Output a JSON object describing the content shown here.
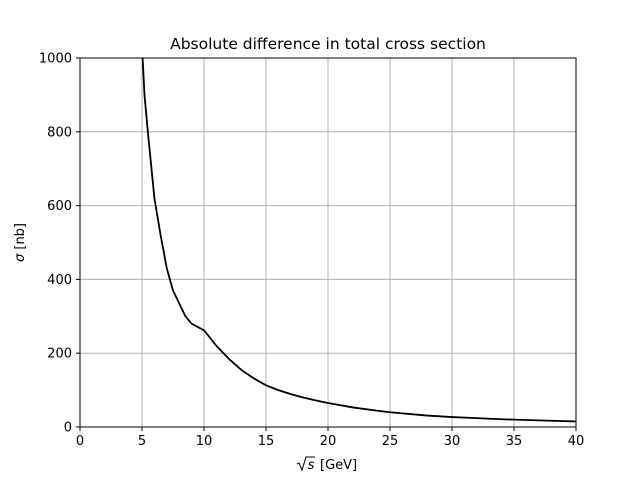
{
  "chart_data": {
    "type": "line",
    "title": "Absolute difference in total cross section",
    "xlabel_base": "[GeV]",
    "ylabel_symbol": "σ",
    "ylabel_unit": "[nb]",
    "xlim": [
      0,
      40
    ],
    "ylim": [
      0,
      1000
    ],
    "x_ticks": [
      0,
      5,
      10,
      15,
      20,
      25,
      30,
      35,
      40
    ],
    "y_ticks": [
      0,
      200,
      400,
      600,
      800,
      1000
    ],
    "grid": true,
    "series": [
      {
        "color": "#000000",
        "points": [
          [
            5.05,
            1000
          ],
          [
            5.2,
            900
          ],
          [
            5.5,
            790
          ],
          [
            6,
            620
          ],
          [
            6.5,
            520
          ],
          [
            7,
            430
          ],
          [
            7.5,
            370
          ],
          [
            8,
            335
          ],
          [
            8.5,
            300
          ],
          [
            9,
            280
          ],
          [
            10,
            262
          ],
          [
            11,
            220
          ],
          [
            12,
            185
          ],
          [
            13,
            155
          ],
          [
            14,
            132
          ],
          [
            15,
            113
          ],
          [
            16,
            100
          ],
          [
            17,
            89
          ],
          [
            18,
            80
          ],
          [
            19,
            72
          ],
          [
            20,
            65
          ],
          [
            22,
            53
          ],
          [
            24,
            44
          ],
          [
            25,
            40
          ],
          [
            26,
            37
          ],
          [
            28,
            31
          ],
          [
            30,
            27
          ],
          [
            32,
            24
          ],
          [
            34,
            21
          ],
          [
            35,
            20
          ],
          [
            36,
            19
          ],
          [
            38,
            17
          ],
          [
            40,
            15
          ]
        ]
      }
    ]
  }
}
